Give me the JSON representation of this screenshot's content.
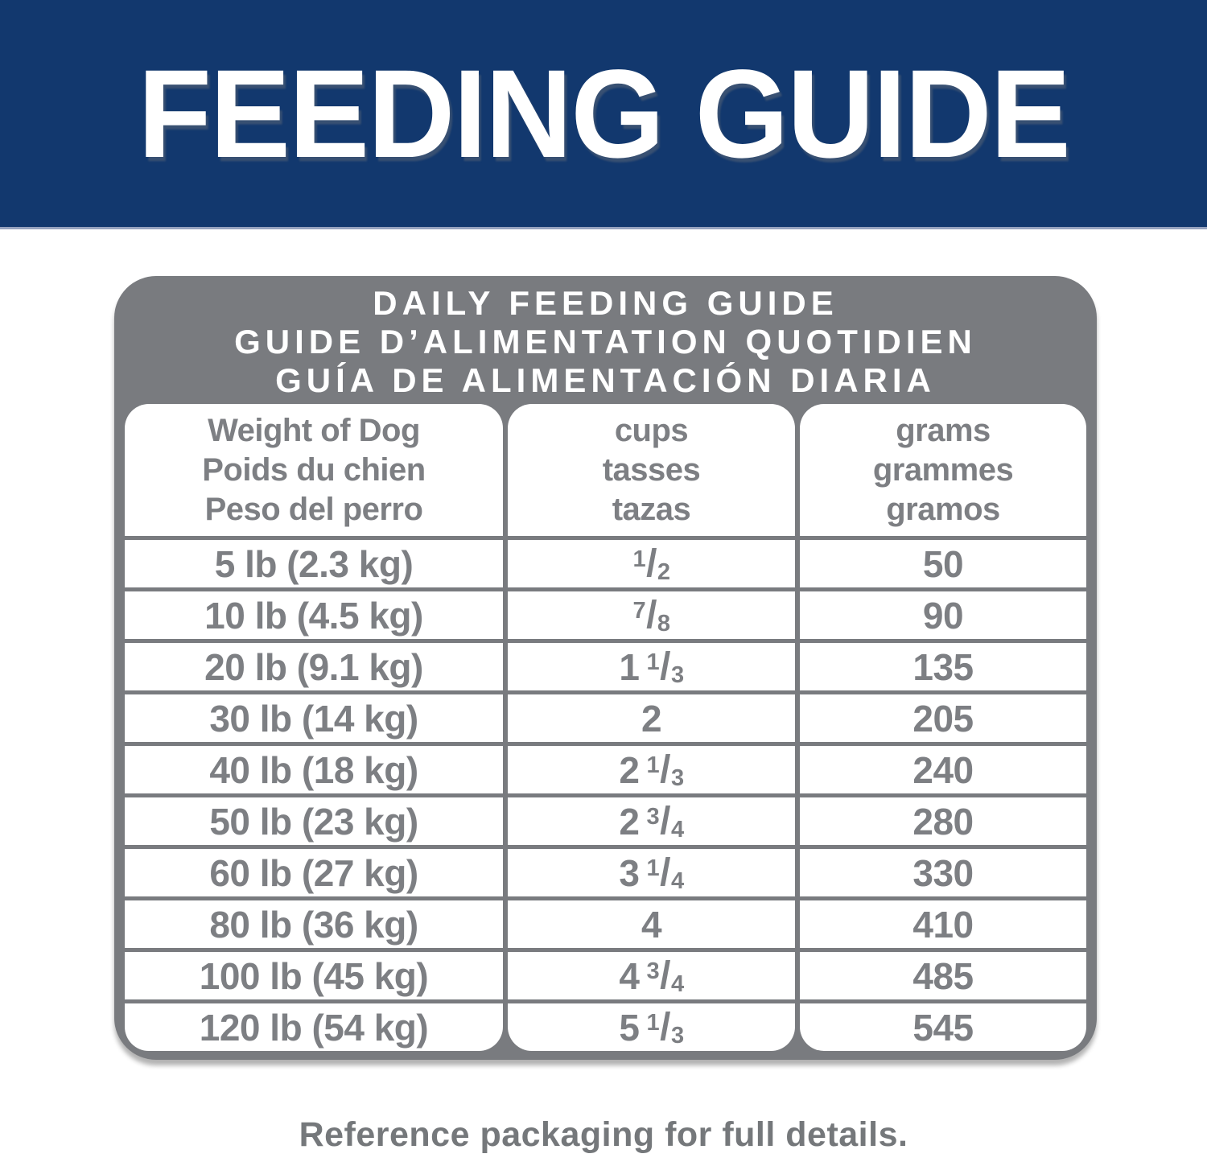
{
  "colors": {
    "banner_bg": "#12386E",
    "banner_text": "#FFFFFF",
    "card_bg": "#797B7F",
    "card_title_text": "#FFFFFF",
    "table_bg": "#FFFFFF",
    "table_text": "#7D7F83",
    "footer_text": "#75787B"
  },
  "banner": {
    "title": "FEEDING GUIDE"
  },
  "card": {
    "title_lines": [
      "DAILY FEEDING GUIDE",
      "GUIDE D’ALIMENTATION QUOTIDIEN",
      "GUÍA DE ALIMENTACIÓN DIARIA"
    ],
    "table": {
      "columns": [
        {
          "id": "weight",
          "lines": [
            "Weight of Dog",
            "Poids du chien",
            "Peso del perro"
          ]
        },
        {
          "id": "cups",
          "lines": [
            "cups",
            "tasses",
            "tazas"
          ]
        },
        {
          "id": "grams",
          "lines": [
            "grams",
            "grammes",
            "gramos"
          ]
        }
      ],
      "rows": [
        {
          "weight": "5 lb (2.3 kg)",
          "cups": "1/2",
          "cups_parts": {
            "whole": "",
            "num": "1",
            "den": "2"
          },
          "grams": "50"
        },
        {
          "weight": "10 lb (4.5 kg)",
          "cups": "7/8",
          "cups_parts": {
            "whole": "",
            "num": "7",
            "den": "8"
          },
          "grams": "90"
        },
        {
          "weight": "20 lb (9.1 kg)",
          "cups": "1 1/3",
          "cups_parts": {
            "whole": "1",
            "num": "1",
            "den": "3"
          },
          "grams": "135"
        },
        {
          "weight": "30 lb (14 kg)",
          "cups": "2",
          "cups_parts": {
            "whole": "2",
            "num": "",
            "den": ""
          },
          "grams": "205"
        },
        {
          "weight": "40 lb (18 kg)",
          "cups": "2 1/3",
          "cups_parts": {
            "whole": "2",
            "num": "1",
            "den": "3"
          },
          "grams": "240"
        },
        {
          "weight": "50 lb (23 kg)",
          "cups": "2 3/4",
          "cups_parts": {
            "whole": "2",
            "num": "3",
            "den": "4"
          },
          "grams": "280"
        },
        {
          "weight": "60 lb (27 kg)",
          "cups": "3 1/4",
          "cups_parts": {
            "whole": "3",
            "num": "1",
            "den": "4"
          },
          "grams": "330"
        },
        {
          "weight": "80 lb (36 kg)",
          "cups": "4",
          "cups_parts": {
            "whole": "4",
            "num": "",
            "den": ""
          },
          "grams": "410"
        },
        {
          "weight": "100 lb (45 kg)",
          "cups": "4 3/4",
          "cups_parts": {
            "whole": "4",
            "num": "3",
            "den": "4"
          },
          "grams": "485"
        },
        {
          "weight": "120 lb (54 kg)",
          "cups": "5 1/3",
          "cups_parts": {
            "whole": "5",
            "num": "1",
            "den": "3"
          },
          "grams": "545"
        }
      ]
    }
  },
  "footer": {
    "note": "Reference packaging for full details."
  }
}
